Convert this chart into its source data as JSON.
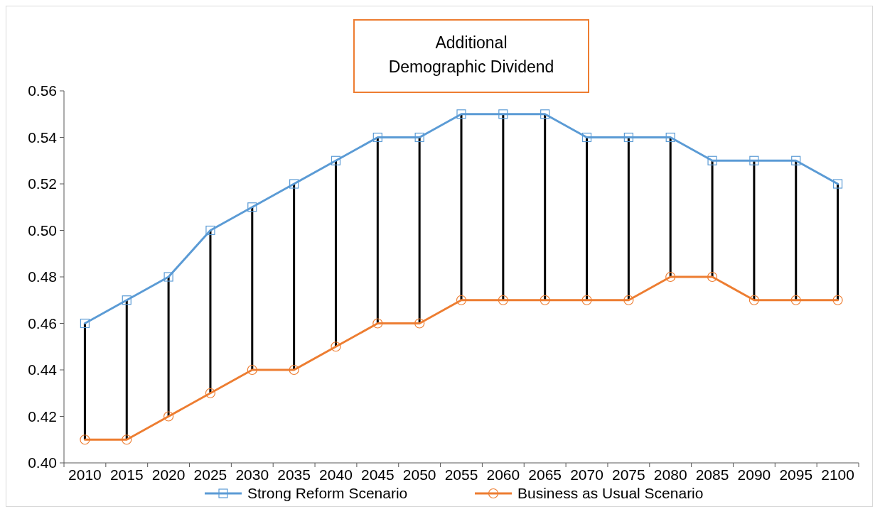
{
  "chart_data": {
    "type": "line",
    "title": "Additional\nDemographic Dividend",
    "categories": [
      "2010",
      "2015",
      "2020",
      "2025",
      "2030",
      "2035",
      "2040",
      "2045",
      "2050",
      "2055",
      "2060",
      "2065",
      "2070",
      "2075",
      "2080",
      "2085",
      "2090",
      "2095",
      "2100"
    ],
    "series": [
      {
        "name": "Strong Reform Scenario",
        "color": "#5b9bd5",
        "marker": "square",
        "values": [
          0.46,
          0.47,
          0.48,
          0.5,
          0.51,
          0.52,
          0.53,
          0.54,
          0.54,
          0.55,
          0.55,
          0.55,
          0.54,
          0.54,
          0.54,
          0.53,
          0.53,
          0.53,
          0.52
        ]
      },
      {
        "name": "Business as Usual Scenario",
        "color": "#ed7d31",
        "marker": "circle",
        "values": [
          0.41,
          0.41,
          0.42,
          0.43,
          0.44,
          0.44,
          0.45,
          0.46,
          0.46,
          0.47,
          0.47,
          0.47,
          0.47,
          0.47,
          0.48,
          0.48,
          0.47,
          0.47,
          0.47
        ]
      },
      {
        "type": "bar",
        "color": "#000000",
        "base": [
          0.41,
          0.41,
          0.42,
          0.43,
          0.44,
          0.44,
          0.45,
          0.46,
          0.46,
          0.47,
          0.47,
          0.47,
          0.47,
          0.47,
          0.48,
          0.48,
          0.47,
          0.47,
          0.47
        ],
        "values": [
          0.05,
          0.06,
          0.06,
          0.07,
          0.07,
          0.08,
          0.08,
          0.08,
          0.08,
          0.08,
          0.08,
          0.08,
          0.07,
          0.07,
          0.06,
          0.05,
          0.06,
          0.06,
          0.05
        ]
      }
    ],
    "ylim": [
      0.4,
      0.56
    ],
    "yticks": [
      {
        "value": 0.4,
        "label": "0.40"
      },
      {
        "value": 0.42,
        "label": "0.42"
      },
      {
        "value": 0.44,
        "label": "0.44"
      },
      {
        "value": 0.46,
        "label": "0.46"
      },
      {
        "value": 0.48,
        "label": "0.48"
      },
      {
        "value": 0.5,
        "label": "0.50"
      },
      {
        "value": 0.52,
        "label": "0.52"
      },
      {
        "value": 0.54,
        "label": "0.54"
      },
      {
        "value": 0.56,
        "label": "0.56"
      }
    ],
    "grid": false,
    "legend": "bottom"
  }
}
